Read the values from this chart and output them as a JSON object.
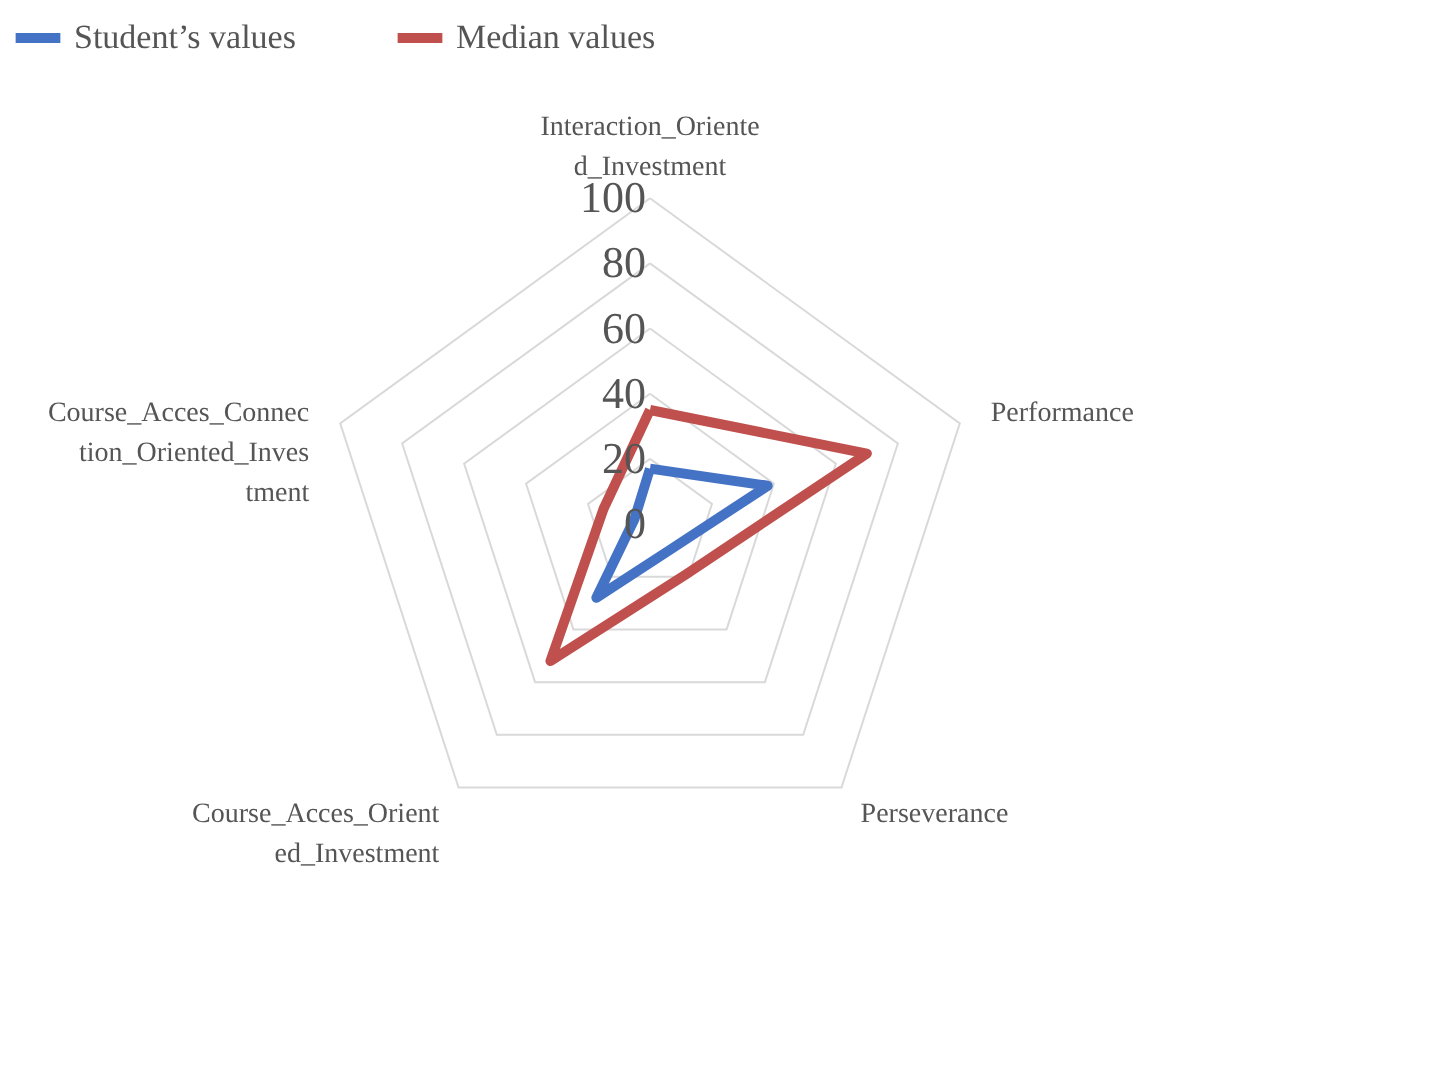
{
  "chart_data": {
    "type": "radar",
    "categories": [
      "Interaction_Oriented_Investment",
      "Performance",
      "Perseverance",
      "Course_Acces_Oriented_Investment",
      "Course_Acces_Connection_Oriented_Investment"
    ],
    "series": [
      {
        "name": "Student’s values",
        "color": "#4472c4",
        "values": [
          17,
          38,
          10,
          28,
          5
        ]
      },
      {
        "name": "Median values",
        "color": "#c0504d",
        "values": [
          35,
          70,
          19,
          52,
          15
        ]
      }
    ],
    "ylim": [
      0,
      100
    ],
    "yticks": [
      0,
      20,
      40,
      60,
      80,
      100
    ],
    "legend": "top",
    "grid": true
  }
}
